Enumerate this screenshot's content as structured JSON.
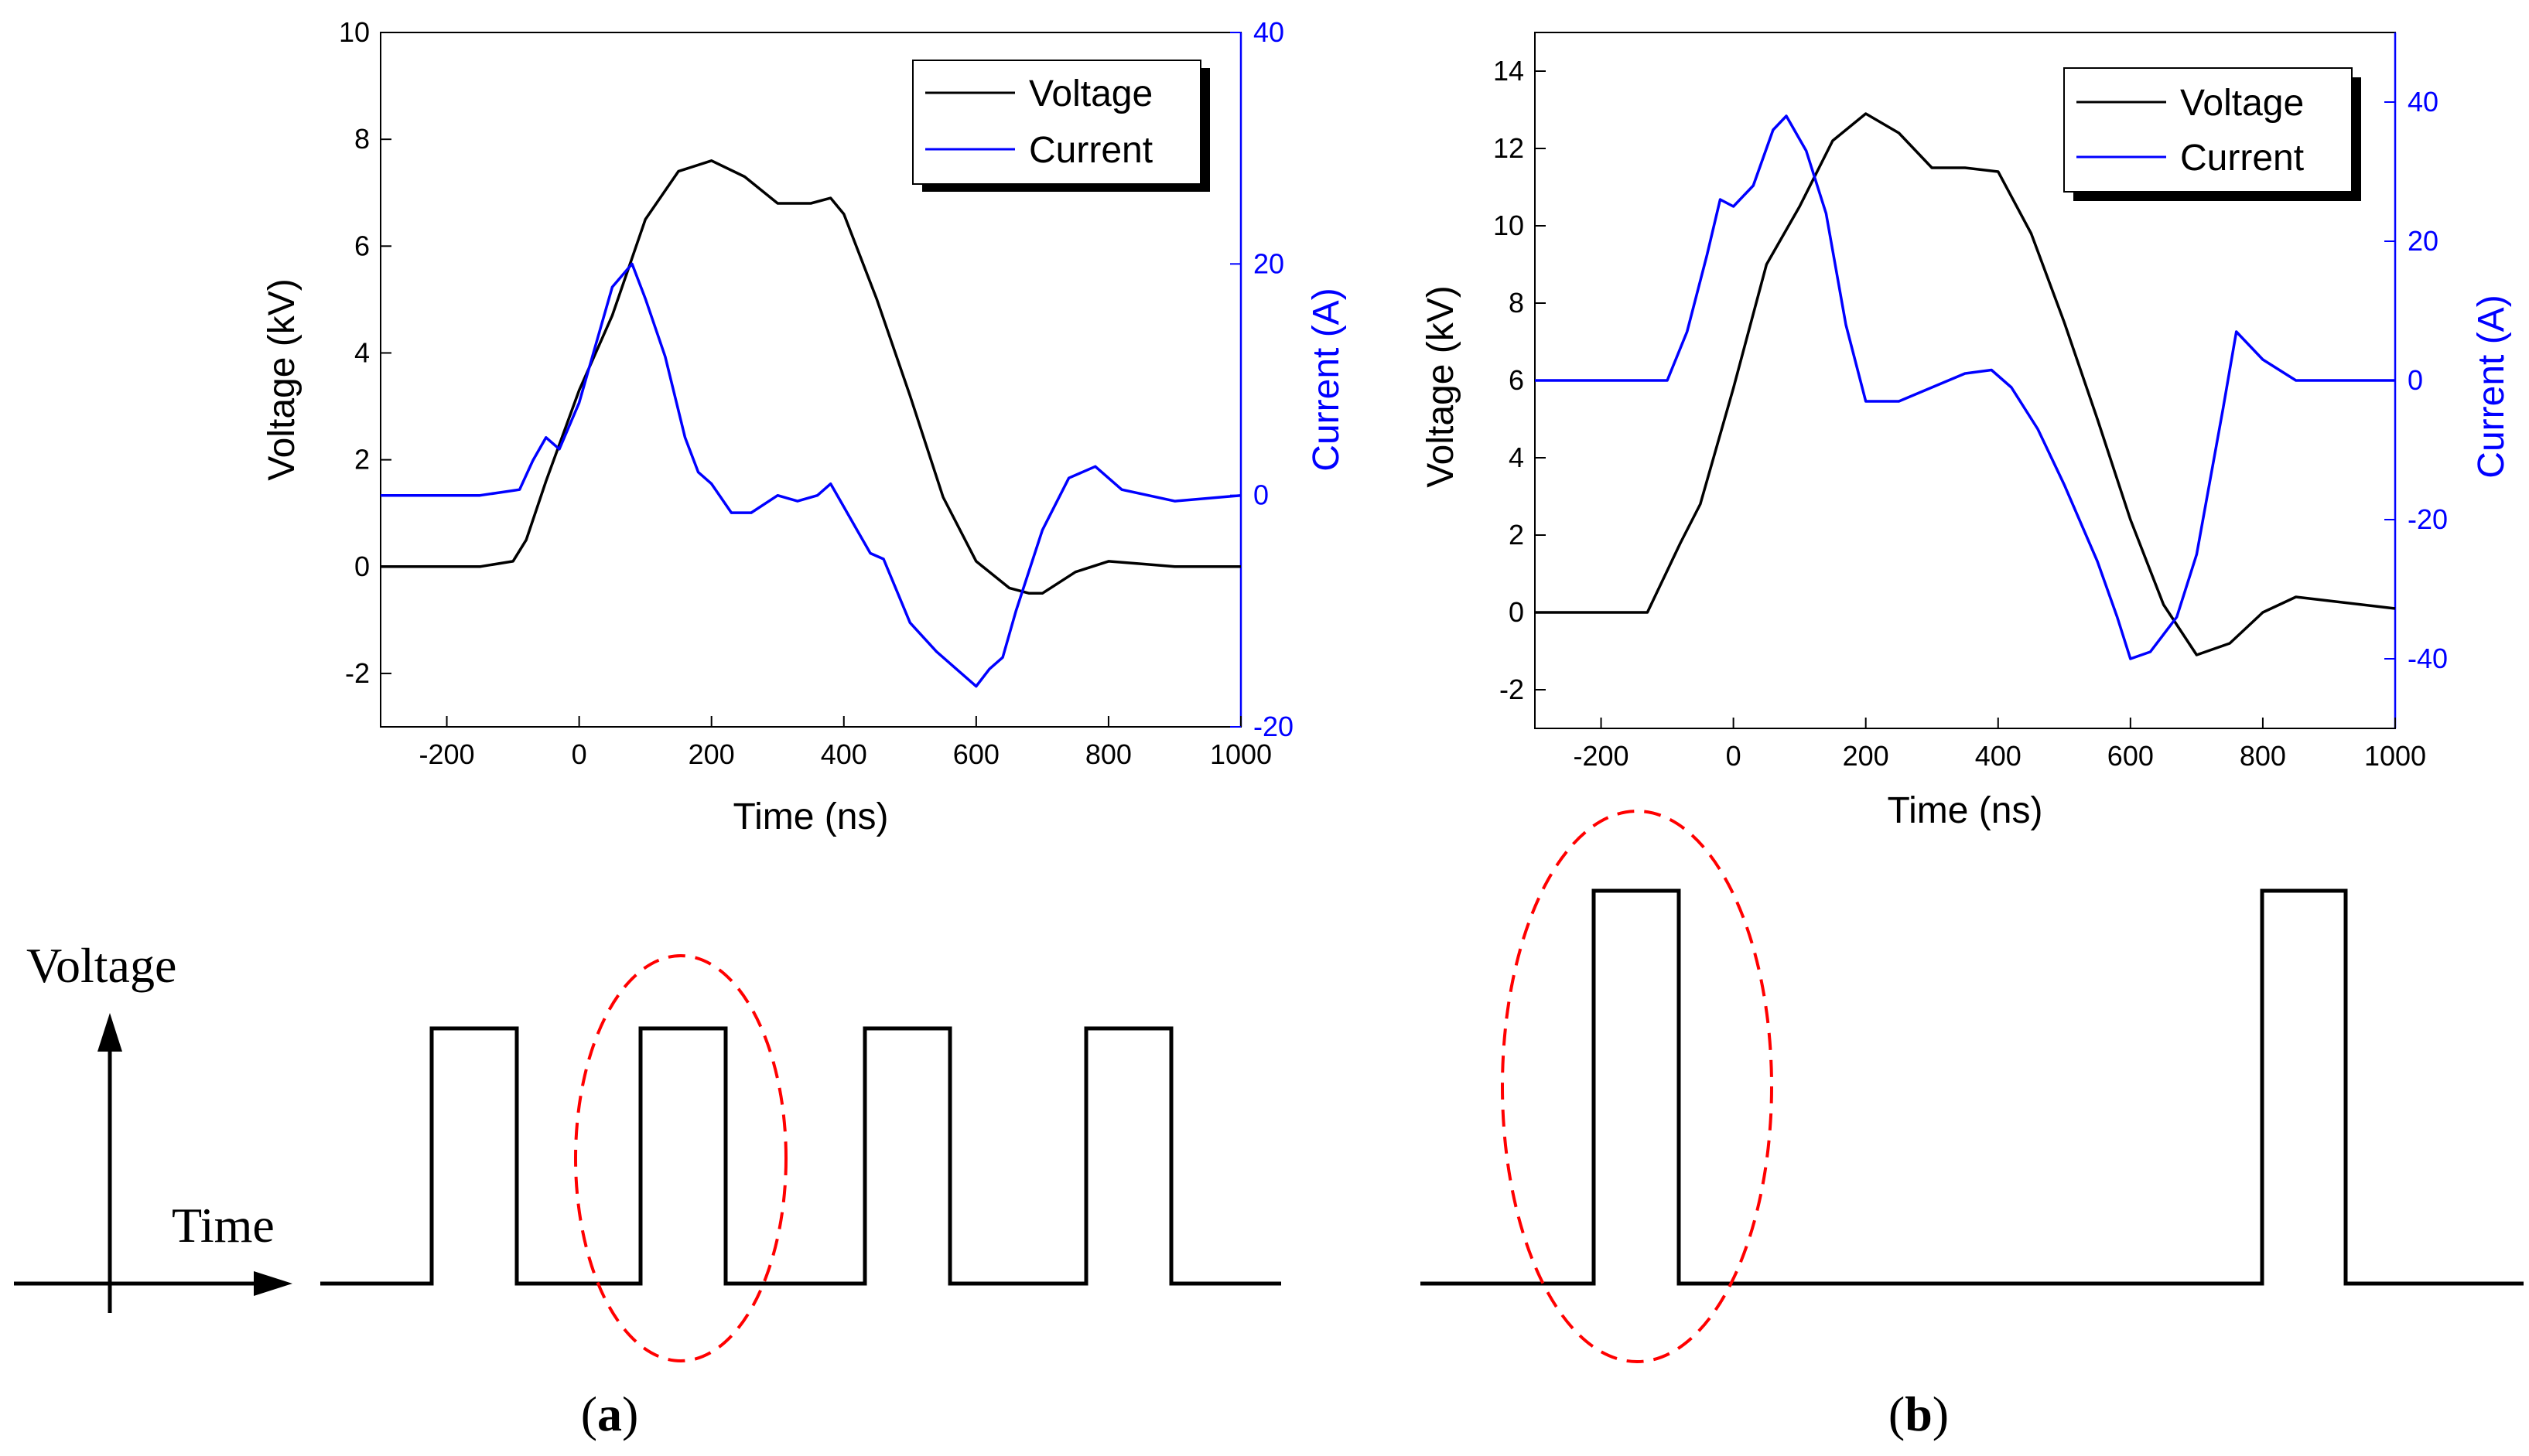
{
  "chart_data": [
    {
      "type": "line",
      "panel": "a",
      "xlabel": "Time (ns)",
      "ylabel": "Voltage (kV)",
      "y2label": "Current (A)",
      "xlim": [
        -300,
        1000
      ],
      "ylim": [
        -3,
        10
      ],
      "y2lim": [
        -20,
        40
      ],
      "xticks": [
        -200,
        0,
        200,
        400,
        600,
        800,
        1000
      ],
      "yticks": [
        -2,
        0,
        2,
        4,
        6,
        8,
        10
      ],
      "y2ticks": [
        -20,
        0,
        20,
        40
      ],
      "legend": {
        "position": "top-right"
      },
      "series": [
        {
          "name": "Voltage",
          "axis": "left",
          "color": "#000000",
          "x": [
            -300,
            -150,
            -100,
            -80,
            -50,
            0,
            50,
            100,
            150,
            200,
            250,
            300,
            350,
            380,
            400,
            450,
            500,
            550,
            600,
            650,
            680,
            700,
            750,
            800,
            850,
            900,
            950,
            1000
          ],
          "y": [
            0,
            0,
            0.1,
            0.5,
            1.6,
            3.3,
            4.7,
            6.5,
            7.4,
            7.6,
            7.3,
            6.8,
            6.8,
            6.9,
            6.6,
            5.0,
            3.2,
            1.3,
            0.1,
            -0.4,
            -0.5,
            -0.5,
            -0.1,
            0.1,
            0.05,
            0,
            0,
            0
          ]
        },
        {
          "name": "Current",
          "axis": "right",
          "color": "#0000ff",
          "x": [
            -300,
            -150,
            -90,
            -70,
            -50,
            -30,
            0,
            50,
            80,
            100,
            130,
            160,
            180,
            200,
            230,
            260,
            300,
            330,
            360,
            380,
            400,
            420,
            440,
            460,
            500,
            540,
            570,
            600,
            620,
            640,
            660,
            700,
            740,
            780,
            820,
            900,
            1000
          ],
          "y": [
            0,
            0,
            0.5,
            3,
            5,
            4,
            8,
            18,
            20,
            17,
            12,
            5,
            2,
            1,
            -1.5,
            -1.5,
            0,
            -0.5,
            0,
            1,
            -1,
            -3,
            -5,
            -5.5,
            -11,
            -13.5,
            -15,
            -16.5,
            -15,
            -14,
            -10,
            -3,
            1.5,
            2.5,
            0.5,
            -0.5,
            0
          ]
        }
      ]
    },
    {
      "type": "line",
      "panel": "b",
      "xlabel": "Time (ns)",
      "ylabel": "Voltage (kV)",
      "y2label": "Current (A)",
      "xlim": [
        -300,
        1000
      ],
      "ylim": [
        -3,
        15
      ],
      "y2lim": [
        -50,
        50
      ],
      "xticks": [
        -200,
        0,
        200,
        400,
        600,
        800,
        1000
      ],
      "yticks": [
        -2,
        0,
        2,
        4,
        6,
        8,
        10,
        12,
        14
      ],
      "y2ticks": [
        -40,
        -20,
        0,
        20,
        40
      ],
      "legend": {
        "position": "top-right"
      },
      "series": [
        {
          "name": "Voltage",
          "axis": "left",
          "color": "#000000",
          "x": [
            -300,
            -130,
            -80,
            -50,
            0,
            50,
            100,
            150,
            200,
            250,
            300,
            350,
            400,
            450,
            500,
            550,
            600,
            650,
            700,
            750,
            800,
            850,
            900,
            1000
          ],
          "y": [
            0,
            0,
            1.8,
            2.8,
            5.8,
            9.0,
            10.5,
            12.2,
            12.9,
            12.4,
            11.5,
            11.5,
            11.4,
            9.8,
            7.5,
            5.0,
            2.4,
            0.2,
            -1.1,
            -0.8,
            0,
            0.4,
            0.3,
            0.1
          ]
        },
        {
          "name": "Current",
          "axis": "right",
          "color": "#0000ff",
          "x": [
            -300,
            -100,
            -70,
            -40,
            -20,
            0,
            30,
            60,
            80,
            110,
            140,
            170,
            200,
            250,
            300,
            350,
            390,
            420,
            460,
            500,
            550,
            580,
            600,
            630,
            670,
            700,
            740,
            760,
            800,
            850,
            900,
            1000
          ],
          "y": [
            0,
            0,
            7,
            18,
            26,
            25,
            28,
            36,
            38,
            33,
            24,
            8,
            -3,
            -3,
            -1,
            1,
            1.5,
            -1,
            -7,
            -15,
            -26,
            -34,
            -40,
            -39,
            -34,
            -25,
            -4,
            7,
            3,
            0,
            0,
            0
          ]
        }
      ]
    }
  ],
  "panels": {
    "a": {
      "label_open": "(",
      "label_letter": "a",
      "label_close": ")"
    },
    "b": {
      "label_open": "(",
      "label_letter": "b",
      "label_close": ")"
    }
  },
  "schematic": {
    "y_axis_label": "Voltage",
    "x_axis_label": "Time"
  },
  "colors": {
    "voltage": "#000000",
    "current": "#0000ff",
    "highlight": "#ff0000"
  }
}
